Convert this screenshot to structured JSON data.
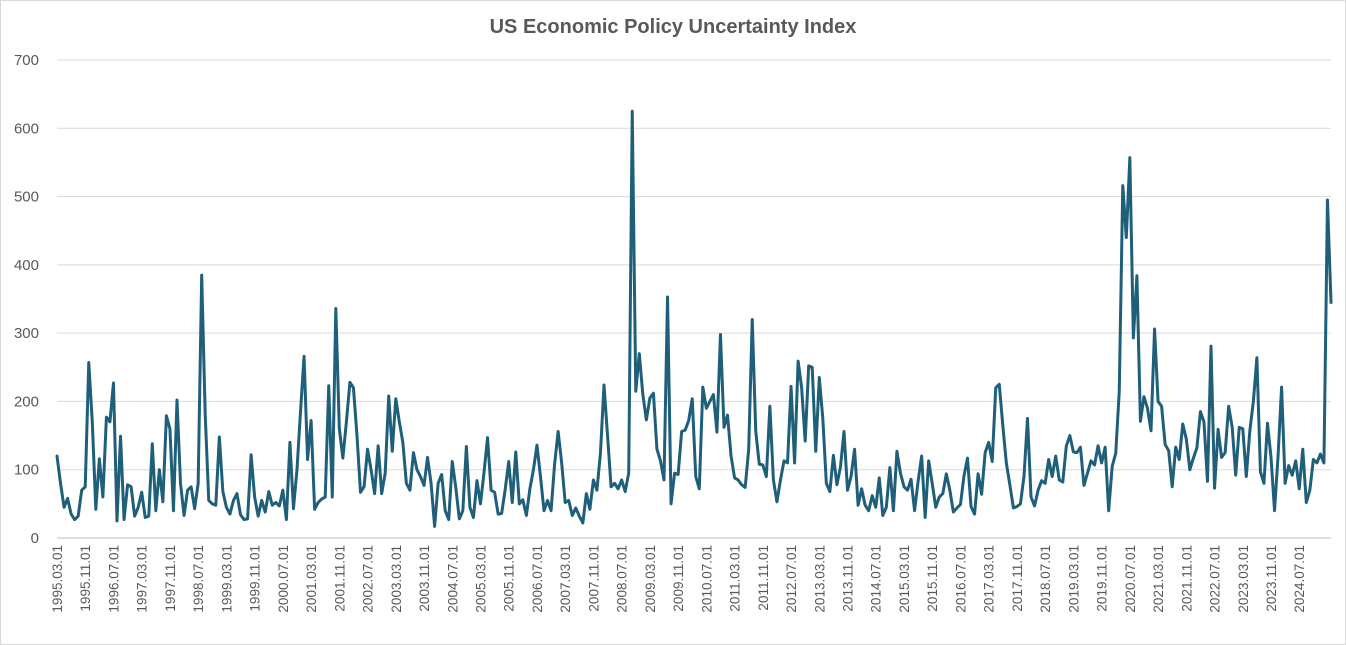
{
  "chart_data": {
    "type": "line",
    "title": "US Economic Policy Uncertainty Index",
    "xlabel": "",
    "ylabel": "",
    "ylim": [
      0,
      700
    ],
    "yticks": [
      0,
      100,
      200,
      300,
      400,
      500,
      600,
      700
    ],
    "grid": true,
    "legend": "none",
    "x_start": "1995.03.01",
    "x_tick_labels": [
      "1995.03.01",
      "1995.11.01",
      "1996.07.01",
      "1997.03.01",
      "1997.11.01",
      "1998.07.01",
      "1999.03.01",
      "1999.11.01",
      "2000.07.01",
      "2001.03.01",
      "2001.11.01",
      "2002.07.01",
      "2003.03.01",
      "2003.11.01",
      "2004.07.01",
      "2005.03.01",
      "2005.11.01",
      "2006.07.01",
      "2007.03.01",
      "2007.11.01",
      "2008.07.01",
      "2009.03.01",
      "2009.11.01",
      "2010.07.01",
      "2011.03.01",
      "2011.11.01",
      "2012.07.01",
      "2013.03.01",
      "2013.11.01",
      "2014.07.01",
      "2015.03.01",
      "2015.11.01",
      "2016.07.01",
      "2017.03.01",
      "2017.11.01",
      "2018.07.01",
      "2019.03.01",
      "2019.11.01",
      "2020.07.01",
      "2021.03.01",
      "2021.11.01",
      "2022.07.01",
      "2023.03.01",
      "2023.11.01",
      "2024.07.01"
    ],
    "line_color": "#1f5f7a",
    "series": [
      {
        "values": [
          120,
          80,
          45,
          58,
          35,
          27,
          32,
          70,
          75,
          257,
          170,
          42,
          116,
          60,
          177,
          170,
          227,
          25,
          149,
          27,
          78,
          75,
          32,
          45,
          67,
          30,
          32,
          138,
          40,
          100,
          53,
          179,
          160,
          40,
          202,
          80,
          33,
          70,
          75,
          43,
          80,
          385,
          180,
          55,
          50,
          48,
          148,
          68,
          45,
          35,
          55,
          65,
          34,
          27,
          28,
          122,
          60,
          32,
          55,
          38,
          68,
          48,
          52,
          47,
          70,
          27,
          140,
          43,
          100,
          185,
          266,
          115,
          172,
          42,
          52,
          57,
          60,
          223,
          60,
          336,
          160,
          117,
          170,
          228,
          220,
          150,
          67,
          75,
          130,
          100,
          65,
          135,
          65,
          95,
          208,
          127,
          204,
          170,
          140,
          80,
          70,
          125,
          100,
          90,
          77,
          118,
          80,
          17,
          80,
          93,
          40,
          27,
          112,
          74,
          28,
          40,
          134,
          45,
          30,
          84,
          50,
          96,
          147,
          70,
          67,
          35,
          36,
          71,
          112,
          52,
          126,
          50,
          56,
          33,
          72,
          100,
          136,
          90,
          40,
          55,
          40,
          108,
          156,
          110,
          52,
          55,
          33,
          44,
          32,
          22,
          65,
          42,
          85,
          70,
          125,
          224,
          150,
          75,
          80,
          72,
          85,
          68,
          95,
          625,
          215,
          270,
          210,
          173,
          205,
          212,
          130,
          113,
          85,
          353,
          50,
          95,
          93,
          156,
          158,
          172,
          204,
          90,
          72,
          221,
          190,
          200,
          210,
          155,
          298,
          162,
          180,
          120,
          88,
          85,
          78,
          74,
          130,
          320,
          156,
          108,
          107,
          90,
          193,
          85,
          53,
          85,
          113,
          110,
          222,
          110,
          259,
          220,
          142,
          252,
          250,
          127,
          235,
          175,
          80,
          68,
          121,
          78,
          104,
          156,
          70,
          90,
          130,
          48,
          72,
          48,
          40,
          62,
          45,
          88,
          33,
          45,
          103,
          40,
          127,
          95,
          75,
          70,
          86,
          40,
          83,
          120,
          30,
          113,
          80,
          45,
          60,
          65,
          94,
          70,
          38,
          44,
          49,
          91,
          117,
          46,
          35,
          94,
          64,
          125,
          140,
          112,
          220,
          225,
          165,
          110,
          78,
          44,
          46,
          50,
          90,
          175,
          60,
          47,
          70,
          84,
          80,
          115,
          90,
          120,
          85,
          82,
          135,
          150,
          126,
          125,
          133,
          77,
          95,
          113,
          107,
          135,
          110,
          133,
          40,
          105,
          124,
          215,
          516,
          440,
          557,
          293,
          384,
          171,
          207,
          190,
          157,
          306,
          200,
          193,
          137,
          128,
          75,
          133,
          115,
          167,
          145,
          100,
          117,
          132,
          185,
          170,
          83,
          281,
          73,
          159,
          118,
          125,
          193,
          162,
          92,
          162,
          160,
          90,
          157,
          200,
          264,
          97,
          80,
          168,
          118,
          40,
          120,
          221,
          80,
          106,
          92,
          113,
          72,
          130,
          52,
          70,
          115,
          110,
          123,
          110,
          495,
          345
        ]
      }
    ]
  }
}
